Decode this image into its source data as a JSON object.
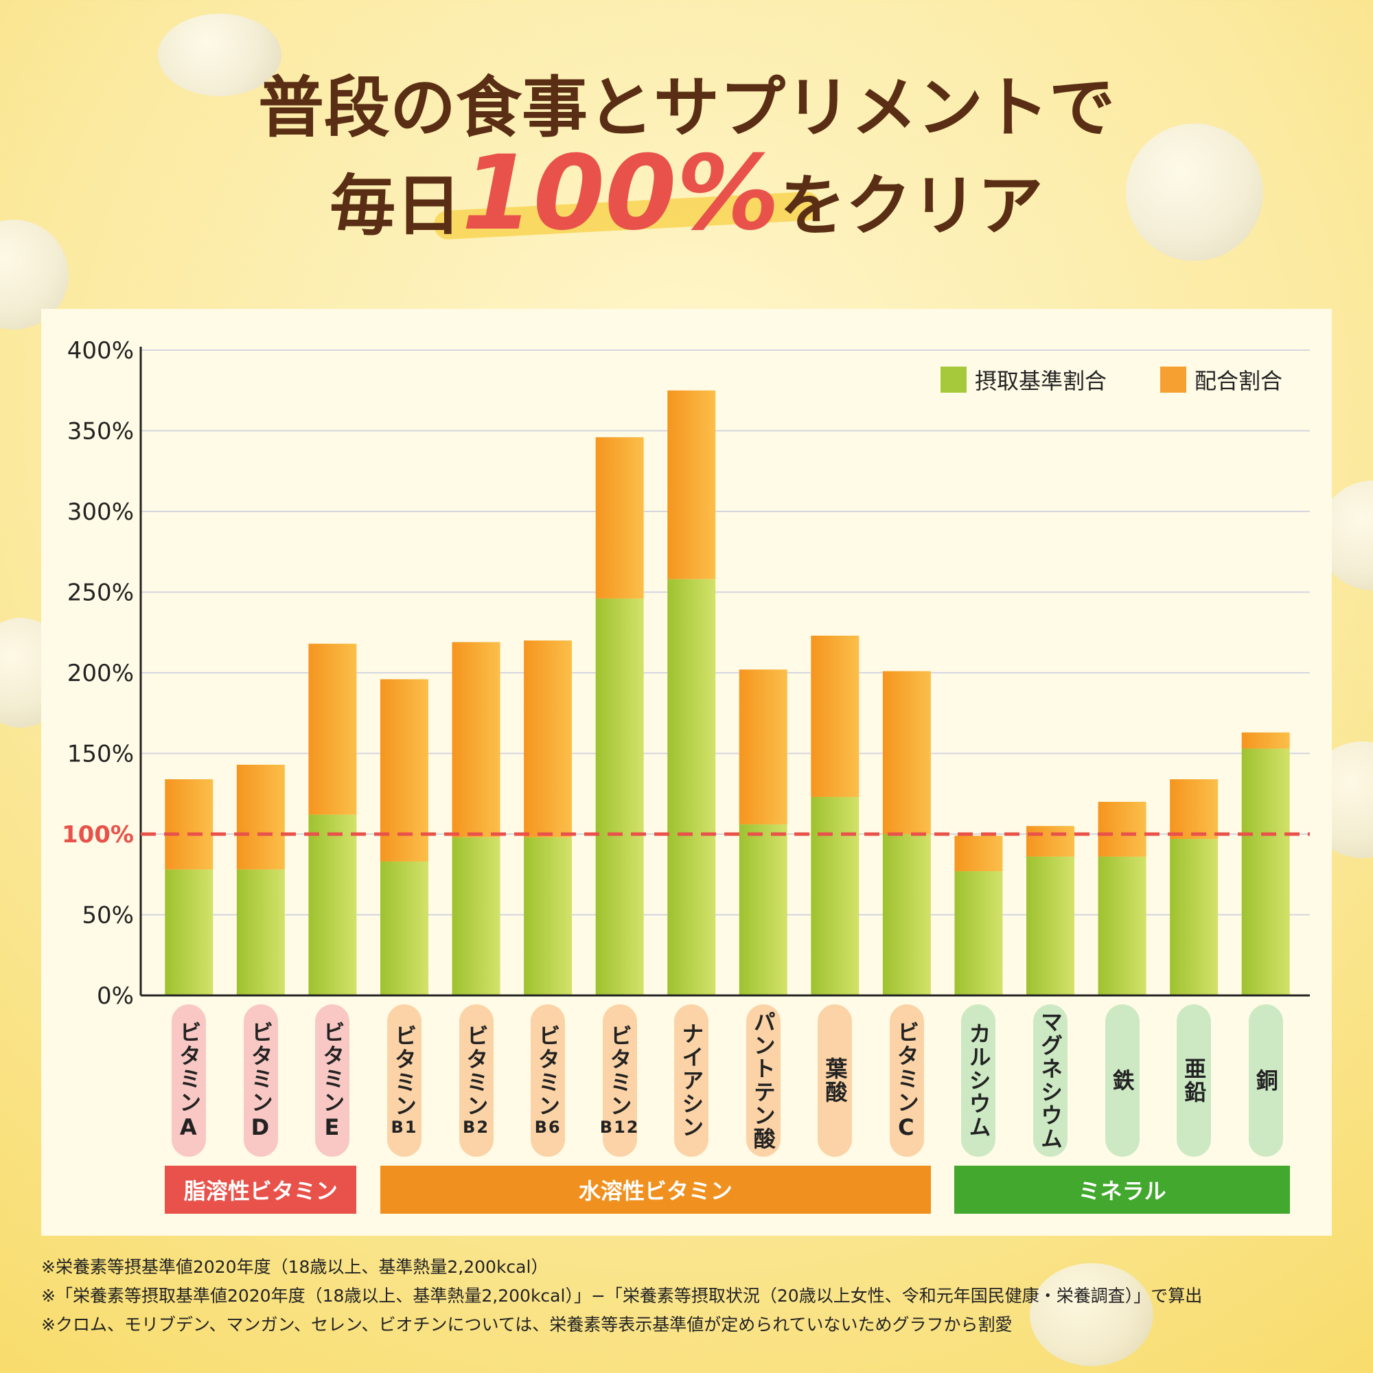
{
  "title": {
    "line1": "普段の食事とサプリメントで",
    "line2_pre": "毎日",
    "line2_big": "100%",
    "line2_post": "をクリア"
  },
  "legend": [
    {
      "label": "摂取基準割合",
      "color": "#a5c93a"
    },
    {
      "label": "配合割合",
      "color": "#f5a030"
    }
  ],
  "chart_data": {
    "type": "bar",
    "stacked": true,
    "ylim": [
      0,
      400
    ],
    "yticks": [
      "0%",
      "50%",
      "100%",
      "150%",
      "200%",
      "250%",
      "300%",
      "350%",
      "400%"
    ],
    "reference_line": {
      "value": 100,
      "label": "100%",
      "color": "#e8524a"
    },
    "categories": [
      "ビタミンA",
      "ビタミンD",
      "ビタミンE",
      "ビタミンB1",
      "ビタミンB2",
      "ビタミンB6",
      "ビタミンB12",
      "ナイアシン",
      "パントテン酸",
      "葉酸",
      "ビタミンC",
      "カルシウム",
      "マグネシウム",
      "鉄",
      "亜鉛",
      "銅"
    ],
    "series": [
      {
        "name": "摂取基準割合",
        "values": [
          78,
          78,
          112,
          83,
          98,
          98,
          246,
          258,
          106,
          123,
          100,
          77,
          86,
          86,
          97,
          153
        ]
      },
      {
        "name": "配合割合",
        "values": [
          56,
          65,
          106,
          113,
          121,
          122,
          100,
          117,
          96,
          100,
          101,
          22,
          19,
          34,
          37,
          10
        ]
      }
    ]
  },
  "x_labels": [
    {
      "main": "ビタミン",
      "sub": "A",
      "group": "fat"
    },
    {
      "main": "ビタミン",
      "sub": "D",
      "group": "fat"
    },
    {
      "main": "ビタミン",
      "sub": "E",
      "group": "fat"
    },
    {
      "main": "ビタミン",
      "sub": "B1",
      "group": "water"
    },
    {
      "main": "ビタミン",
      "sub": "B2",
      "group": "water"
    },
    {
      "main": "ビタミン",
      "sub": "B6",
      "group": "water"
    },
    {
      "main": "ビタミン",
      "sub": "B12",
      "group": "water"
    },
    {
      "main": "ナイアシン",
      "sub": "",
      "group": "water"
    },
    {
      "main": "パントテン酸",
      "sub": "",
      "group": "water"
    },
    {
      "main": "葉酸",
      "sub": "",
      "group": "water"
    },
    {
      "main": "ビタミン",
      "sub": "C",
      "group": "water"
    },
    {
      "main": "カルシウム",
      "sub": "",
      "group": "mineral"
    },
    {
      "main": "マグネシウム",
      "sub": "",
      "group": "mineral"
    },
    {
      "main": "鉄",
      "sub": "",
      "group": "mineral"
    },
    {
      "main": "亜鉛",
      "sub": "",
      "group": "mineral"
    },
    {
      "main": "銅",
      "sub": "",
      "group": "mineral"
    }
  ],
  "groups": [
    {
      "label": "脂溶性ビタミン",
      "color": "#e8524a",
      "pill": "#f9c8c4"
    },
    {
      "label": "水溶性ビタミン",
      "color": "#f0901e",
      "pill": "#fbd3a6"
    },
    {
      "label": "ミネラル",
      "color": "#42a82e",
      "pill": "#cde9c4"
    }
  ],
  "notes": [
    "※栄養素等摂基準値2020年度（18歳以上、基準熱量2,200kcal）",
    "※「栄養素等摂取基準値2020年度（18歳以上、基準熱量2,200kcal）」−「栄養素等摂取状況（20歳以上女性、令和元年国民健康・栄養調査）」で算出",
    "※クロム、モリブデン、マンガン、セレン、ビオチンについては、栄養素等表示基準値が定められていないためグラフから割愛"
  ]
}
